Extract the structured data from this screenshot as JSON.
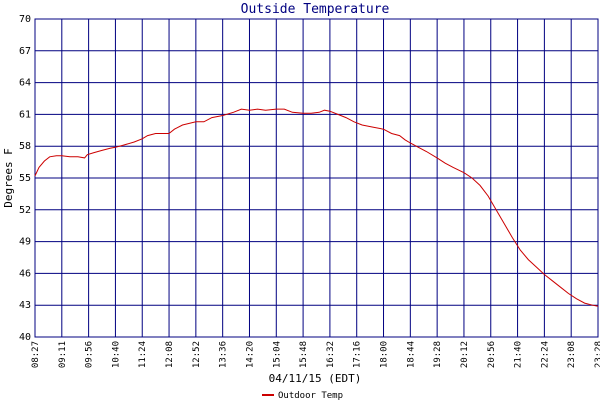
{
  "chart_data": {
    "type": "line",
    "title": "Outside Temperature",
    "xlabel": "04/11/15 (EDT)",
    "ylabel": "Degrees F",
    "ylim": [
      40,
      70
    ],
    "yticks": [
      40,
      43,
      46,
      49,
      52,
      55,
      58,
      61,
      64,
      67,
      70
    ],
    "x_categories": [
      "08:27",
      "09:11",
      "09:56",
      "10:40",
      "11:24",
      "12:08",
      "12:52",
      "13:36",
      "14:20",
      "15:04",
      "15:48",
      "16:32",
      "17:16",
      "18:00",
      "18:44",
      "19:28",
      "20:12",
      "20:56",
      "21:40",
      "22:24",
      "23:08",
      "23:28"
    ],
    "grid": true,
    "legend_position": "bottom",
    "colors": {
      "line": "#cc0000",
      "grid": "#000080",
      "title": "#000080"
    },
    "series": [
      {
        "name": "Outdoor Temp",
        "points": [
          [
            0,
            55.2
          ],
          [
            0.15,
            56.0
          ],
          [
            0.35,
            56.6
          ],
          [
            0.55,
            57.0
          ],
          [
            0.8,
            57.1
          ],
          [
            1.0,
            57.1
          ],
          [
            1.3,
            57.0
          ],
          [
            1.6,
            57.0
          ],
          [
            1.85,
            56.9
          ],
          [
            1.95,
            57.2
          ],
          [
            2.2,
            57.4
          ],
          [
            2.5,
            57.6
          ],
          [
            2.8,
            57.8
          ],
          [
            3.0,
            57.9
          ],
          [
            3.3,
            58.1
          ],
          [
            3.7,
            58.4
          ],
          [
            4.0,
            58.7
          ],
          [
            4.2,
            59.0
          ],
          [
            4.5,
            59.2
          ],
          [
            5.0,
            59.2
          ],
          [
            5.2,
            59.6
          ],
          [
            5.5,
            60.0
          ],
          [
            6.0,
            60.3
          ],
          [
            6.3,
            60.3
          ],
          [
            6.6,
            60.7
          ],
          [
            7.0,
            60.9
          ],
          [
            7.4,
            61.2
          ],
          [
            7.7,
            61.5
          ],
          [
            8.0,
            61.4
          ],
          [
            8.3,
            61.5
          ],
          [
            8.6,
            61.4
          ],
          [
            9.0,
            61.5
          ],
          [
            9.3,
            61.5
          ],
          [
            9.6,
            61.2
          ],
          [
            10.0,
            61.1
          ],
          [
            10.3,
            61.1
          ],
          [
            10.6,
            61.2
          ],
          [
            10.8,
            61.4
          ],
          [
            11.0,
            61.3
          ],
          [
            11.3,
            61.0
          ],
          [
            11.6,
            60.7
          ],
          [
            11.9,
            60.3
          ],
          [
            12.2,
            60.0
          ],
          [
            12.6,
            59.8
          ],
          [
            13.0,
            59.6
          ],
          [
            13.3,
            59.2
          ],
          [
            13.6,
            59.0
          ],
          [
            13.8,
            58.6
          ],
          [
            14.0,
            58.3
          ],
          [
            14.3,
            57.9
          ],
          [
            14.6,
            57.5
          ],
          [
            15.0,
            56.9
          ],
          [
            15.3,
            56.4
          ],
          [
            15.6,
            56.0
          ],
          [
            16.0,
            55.5
          ],
          [
            16.3,
            55.0
          ],
          [
            16.6,
            54.3
          ],
          [
            16.9,
            53.3
          ],
          [
            17.2,
            52.0
          ],
          [
            17.5,
            50.7
          ],
          [
            17.8,
            49.4
          ],
          [
            18.1,
            48.2
          ],
          [
            18.4,
            47.3
          ],
          [
            18.7,
            46.6
          ],
          [
            19.0,
            45.9
          ],
          [
            19.3,
            45.3
          ],
          [
            19.6,
            44.7
          ],
          [
            19.9,
            44.1
          ],
          [
            20.2,
            43.6
          ],
          [
            20.5,
            43.2
          ],
          [
            20.8,
            43.0
          ],
          [
            21.0,
            42.9
          ]
        ]
      }
    ]
  }
}
